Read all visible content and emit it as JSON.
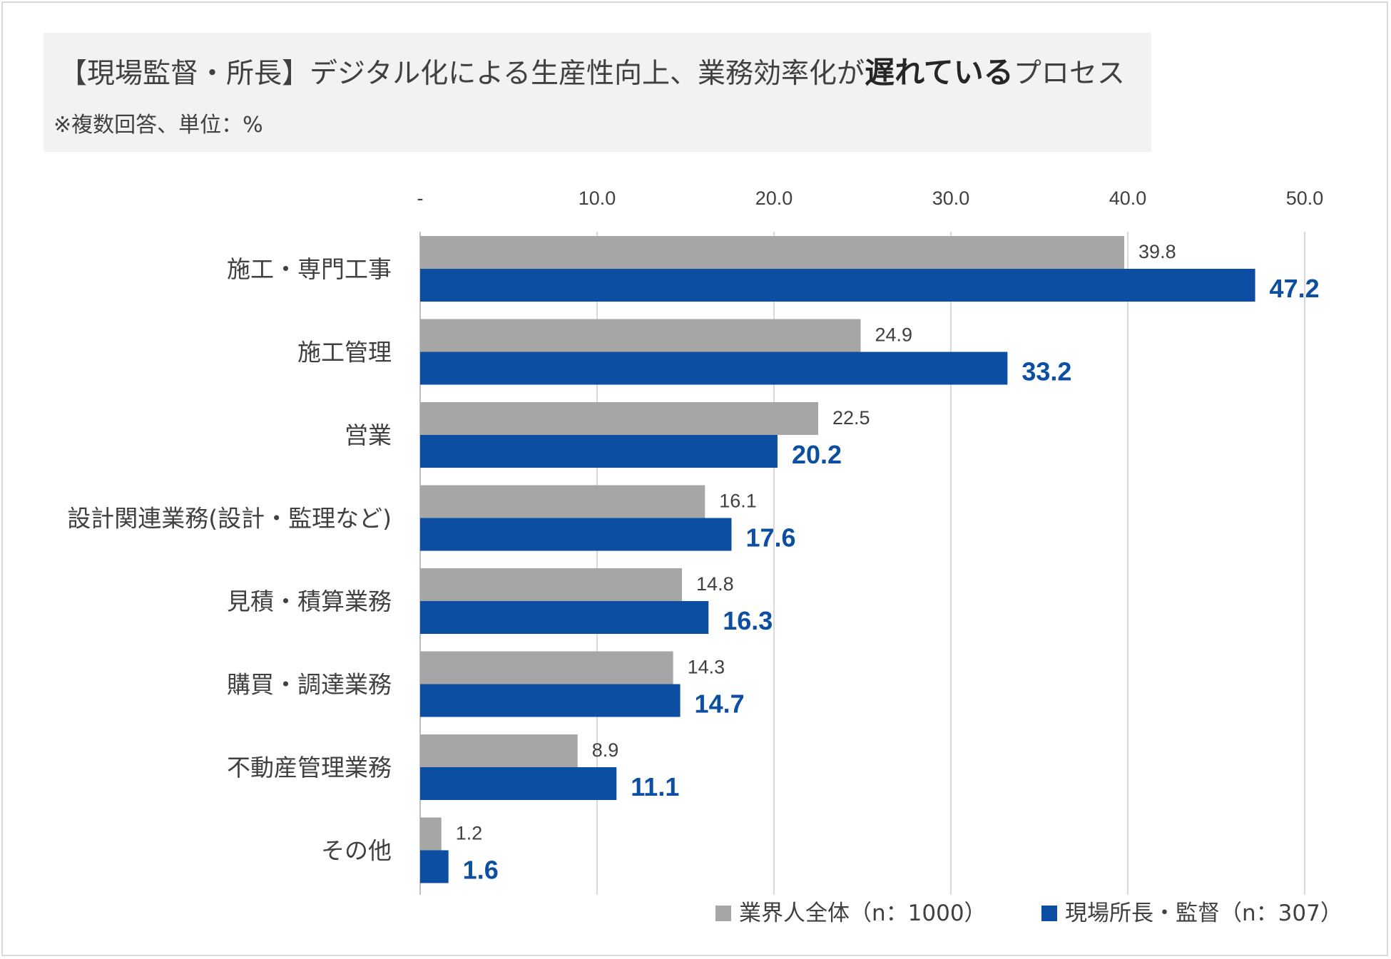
{
  "header": {
    "title_prefix": "【現場監督・所長】デジタル化による生産性向上、業務効率化が",
    "title_emphasis": "遅れている",
    "title_suffix": "プロセス",
    "subtitle": "※複数回答、単位：%"
  },
  "chart_data": {
    "type": "bar",
    "orientation": "horizontal",
    "title": "【現場監督・所長】デジタル化による生産性向上、業務効率化が遅れているプロセス",
    "subtitle": "※複数回答、単位：%",
    "categories": [
      "施工・専門工事",
      "施工管理",
      "営業",
      "設計関連業務(設計・監理など)",
      "見積・積算業務",
      "購買・調達業務",
      "不動産管理業務",
      "その他"
    ],
    "series": [
      {
        "name": "業界人全体（n：1000）",
        "color": "#a6a6a6",
        "values": [
          39.8,
          24.9,
          22.5,
          16.1,
          14.8,
          14.3,
          8.9,
          1.2
        ],
        "labels": [
          "39.8",
          "24.9",
          "22.5",
          "16.1",
          "14.8",
          "14.3",
          "8.9",
          "1.2"
        ]
      },
      {
        "name": "現場所長・監督（n：307）",
        "color": "#0b4ea2",
        "values": [
          47.2,
          33.2,
          20.2,
          17.6,
          16.3,
          14.7,
          11.1,
          1.6
        ],
        "labels": [
          "47.2",
          "33.2",
          "20.2",
          "17.6",
          "16.3",
          "14.7",
          "11.1",
          "1.6"
        ]
      }
    ],
    "xlim": [
      0,
      50
    ],
    "xticks": [
      0,
      10,
      20,
      30,
      40,
      50
    ],
    "xtick_labels": [
      "-",
      "10.0",
      "20.0",
      "30.0",
      "40.0",
      "50.0"
    ],
    "grid": true,
    "axis_position": "top",
    "legend": "bottom-right"
  }
}
